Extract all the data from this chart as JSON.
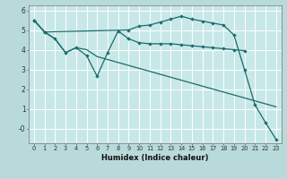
{
  "xlabel": "Humidex (Indice chaleur)",
  "background_color": "#b8dada",
  "plot_bg_color": "#c8e8e8",
  "grid_color": "#ffffff",
  "line_color": "#1a6b6b",
  "xlim": [
    -0.5,
    23.5
  ],
  "ylim": [
    -0.75,
    6.25
  ],
  "yticks": [
    0,
    1,
    2,
    3,
    4,
    5,
    6
  ],
  "ytick_labels": [
    "-0",
    "1",
    "2",
    "3",
    "4",
    "5",
    "6"
  ],
  "xticks": [
    0,
    1,
    2,
    3,
    4,
    5,
    6,
    7,
    8,
    9,
    10,
    11,
    12,
    13,
    14,
    15,
    16,
    17,
    18,
    19,
    20,
    21,
    22,
    23
  ],
  "line1_x": [
    0,
    1,
    2,
    3,
    4,
    5,
    6,
    7,
    8,
    9,
    10,
    11,
    12,
    13,
    14,
    15,
    16,
    17,
    18,
    19,
    20,
    21,
    22,
    23
  ],
  "line1_y": [
    5.5,
    4.9,
    4.55,
    3.85,
    4.1,
    4.0,
    3.65,
    3.5,
    3.35,
    3.2,
    3.05,
    2.9,
    2.75,
    2.6,
    2.45,
    2.3,
    2.15,
    2.0,
    1.85,
    1.7,
    1.55,
    1.4,
    1.25,
    1.1
  ],
  "line2_x": [
    0,
    1,
    2,
    3,
    4,
    5,
    6,
    7,
    8,
    9,
    10,
    11,
    12,
    13,
    14,
    15,
    16,
    17,
    18,
    19,
    20
  ],
  "line2_y": [
    5.5,
    4.9,
    4.55,
    3.85,
    4.1,
    3.7,
    2.65,
    3.85,
    4.95,
    4.55,
    4.35,
    4.3,
    4.3,
    4.3,
    4.25,
    4.2,
    4.15,
    4.1,
    4.05,
    4.0,
    3.95
  ],
  "line3_x": [
    0,
    1,
    9,
    10,
    11,
    12,
    13,
    14,
    15,
    16,
    17,
    18,
    19,
    20,
    21,
    22,
    23
  ],
  "line3_y": [
    5.5,
    4.9,
    5.0,
    5.2,
    5.25,
    5.4,
    5.55,
    5.7,
    5.55,
    5.45,
    5.35,
    5.25,
    4.75,
    3.0,
    1.2,
    0.3,
    -0.55
  ]
}
